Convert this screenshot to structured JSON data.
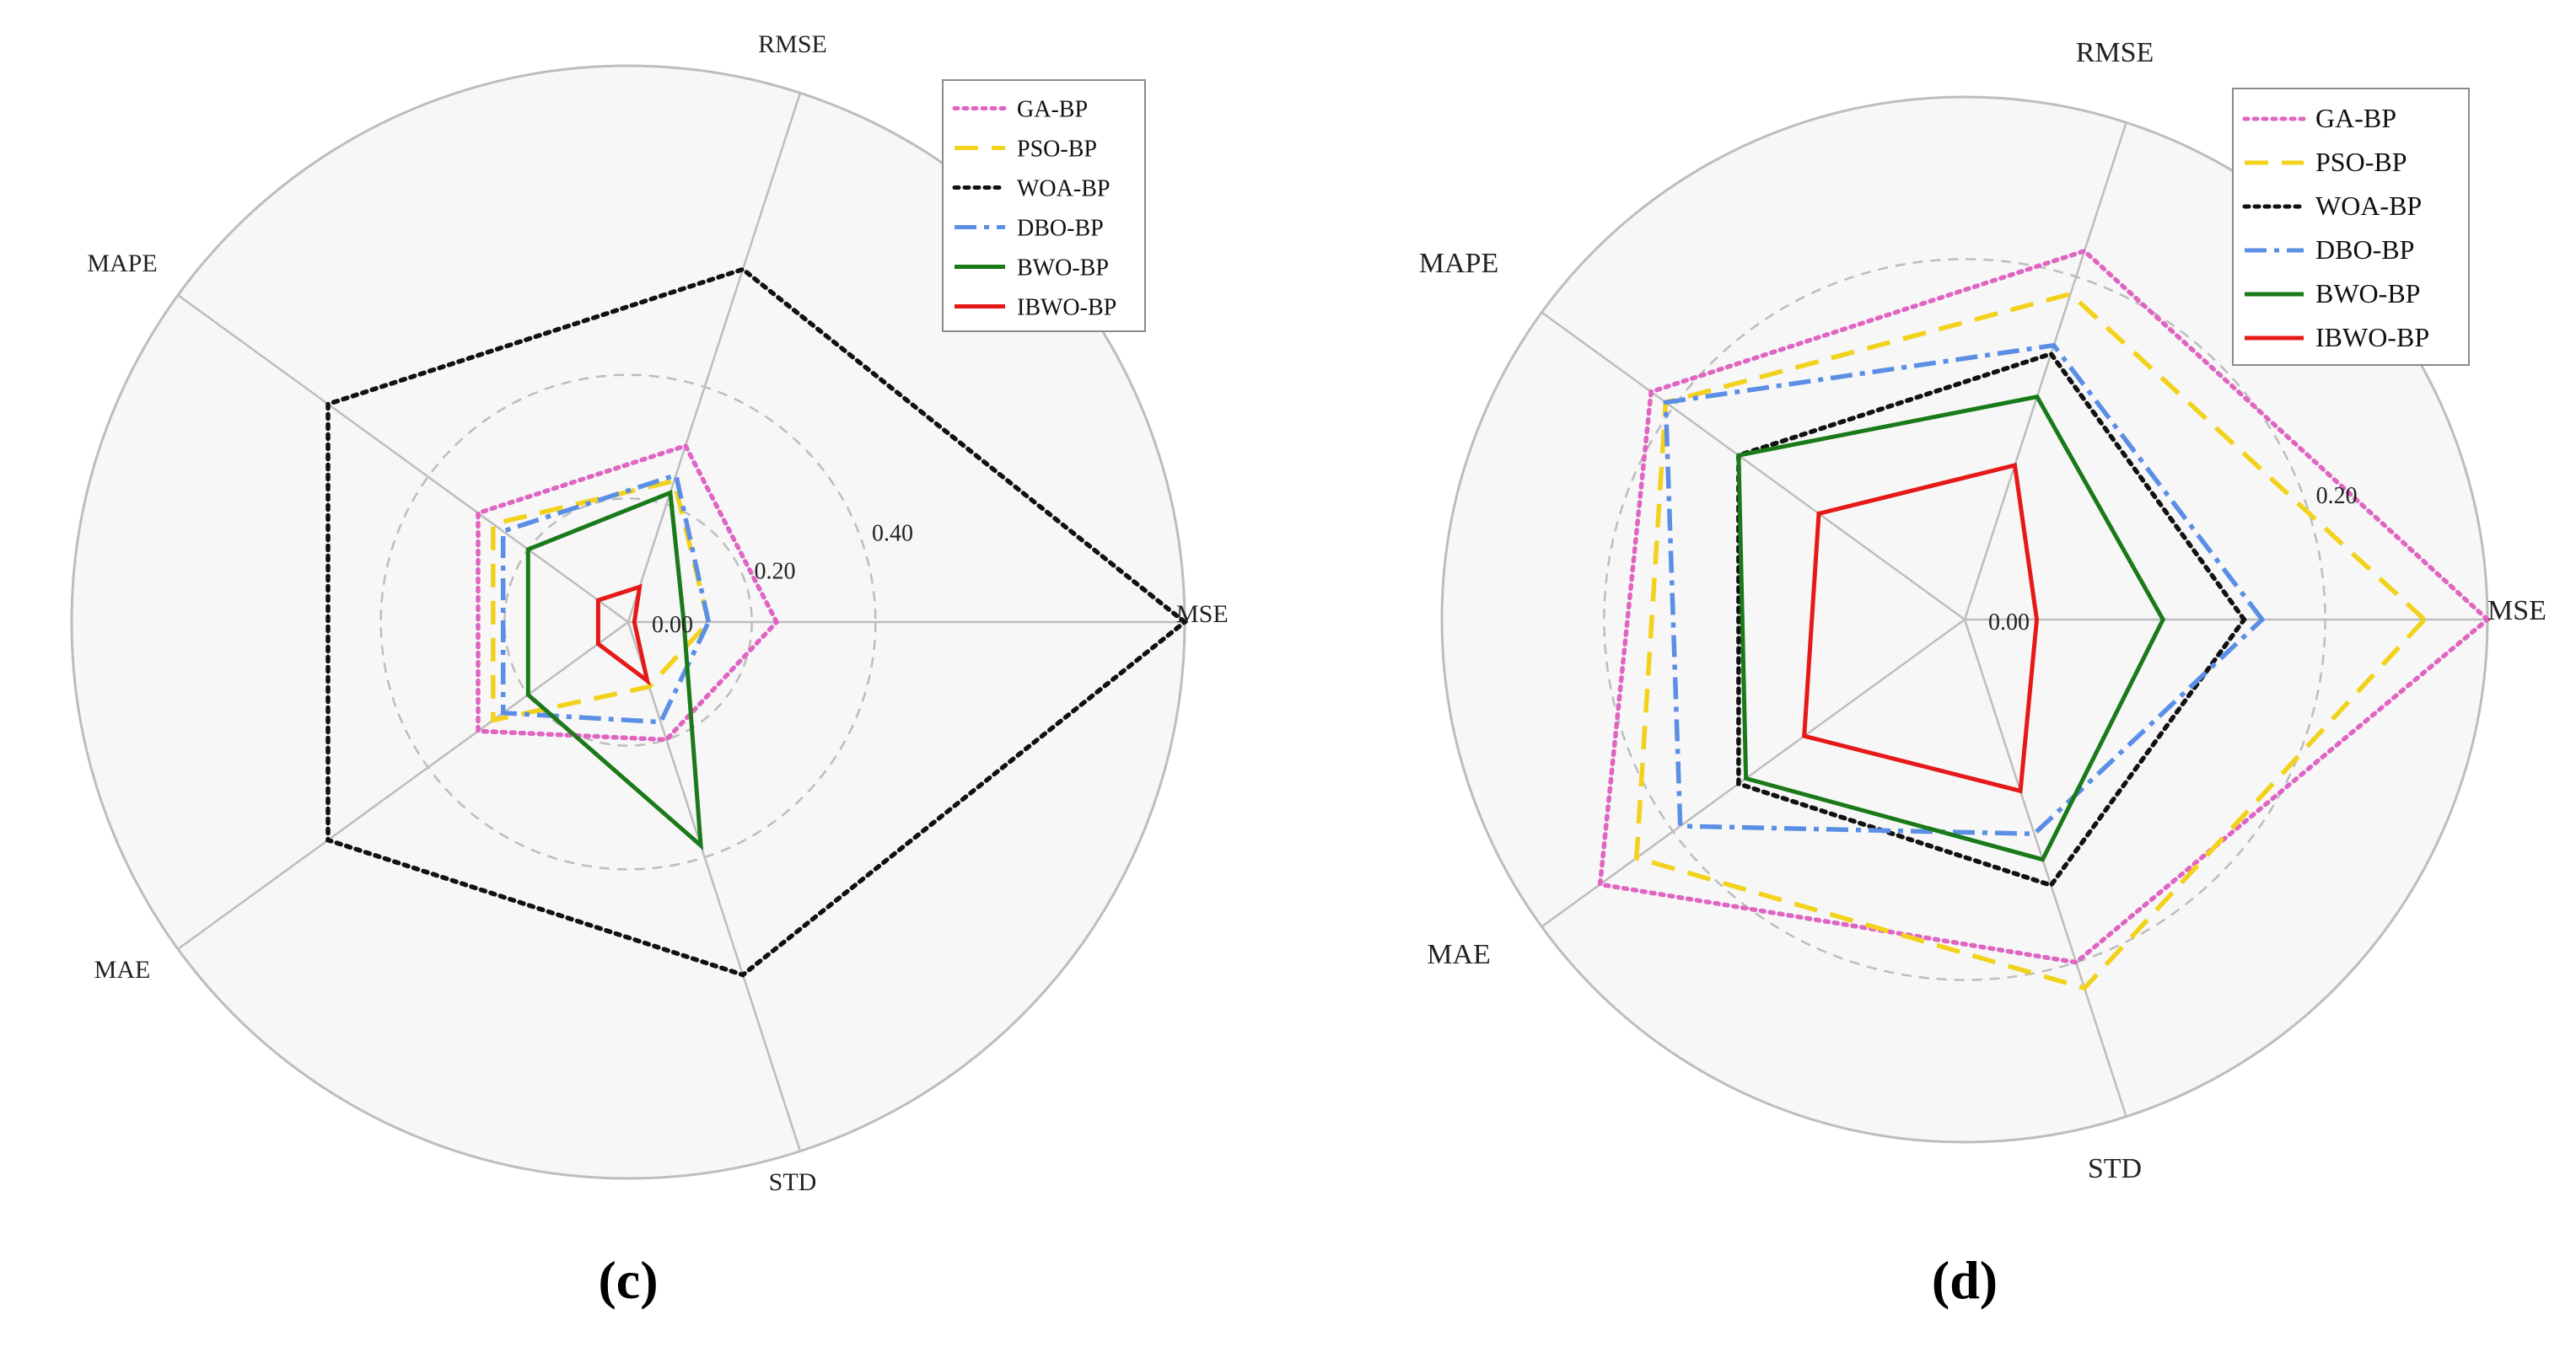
{
  "figure": {
    "panels": [
      "(c)",
      "(d)"
    ]
  },
  "legend": [
    "GA-BP",
    "PSO-BP",
    "WOA-BP",
    "DBO-BP",
    "BWO-BP",
    "IBWO-BP"
  ],
  "colors": {
    "GA-BP": "#e065c3",
    "PSO-BP": "#f2d21b",
    "WOA-BP": "#111111",
    "DBO-BP": "#5b8fe6",
    "BWO-BP": "#1a7a1a",
    "IBWO-BP": "#e61919",
    "grid": "#bdbdbd",
    "background": "#f7f7f7"
  },
  "chart_data": [
    {
      "type": "radar",
      "panel_label": "(c)",
      "axes": [
        "MSE",
        "RMSE",
        "MAPE",
        "MAE",
        "STD"
      ],
      "rmax": 0.9,
      "ticks": [
        0.0,
        0.2,
        0.4
      ],
      "tick_labels": [
        "0.00",
        "0.20",
        "0.40"
      ],
      "series": [
        {
          "name": "GA-BP",
          "values": [
            0.24,
            0.3,
            0.3,
            0.3,
            0.2
          ]
        },
        {
          "name": "PSO-BP",
          "values": [
            0.13,
            0.24,
            0.27,
            0.27,
            0.11
          ]
        },
        {
          "name": "WOA-BP",
          "values": [
            0.9,
            0.6,
            0.6,
            0.6,
            0.6
          ]
        },
        {
          "name": "DBO-BP",
          "values": [
            0.13,
            0.25,
            0.25,
            0.25,
            0.17
          ]
        },
        {
          "name": "BWO-BP",
          "values": [
            0.09,
            0.22,
            0.2,
            0.2,
            0.38
          ]
        },
        {
          "name": "IBWO-BP",
          "values": [
            0.01,
            0.06,
            0.06,
            0.06,
            0.1
          ]
        }
      ]
    },
    {
      "type": "radar",
      "panel_label": "(d)",
      "axes": [
        "MSE",
        "RMSE",
        "MAPE",
        "MAE",
        "STD"
      ],
      "rmax": 0.29,
      "ticks": [
        0.0,
        0.2
      ],
      "tick_labels": [
        "0.00",
        "0.20"
      ],
      "series": [
        {
          "name": "GA-BP",
          "values": [
            0.29,
            0.215,
            0.215,
            0.25,
            0.2
          ]
        },
        {
          "name": "PSO-BP",
          "values": [
            0.255,
            0.19,
            0.205,
            0.225,
            0.215
          ]
        },
        {
          "name": "WOA-BP",
          "values": [
            0.155,
            0.155,
            0.155,
            0.155,
            0.155
          ]
        },
        {
          "name": "DBO-BP",
          "values": [
            0.165,
            0.16,
            0.205,
            0.195,
            0.125
          ]
        },
        {
          "name": "BWO-BP",
          "values": [
            0.11,
            0.13,
            0.155,
            0.15,
            0.14
          ]
        },
        {
          "name": "IBWO-BP",
          "values": [
            0.04,
            0.09,
            0.1,
            0.11,
            0.1
          ]
        }
      ]
    }
  ]
}
